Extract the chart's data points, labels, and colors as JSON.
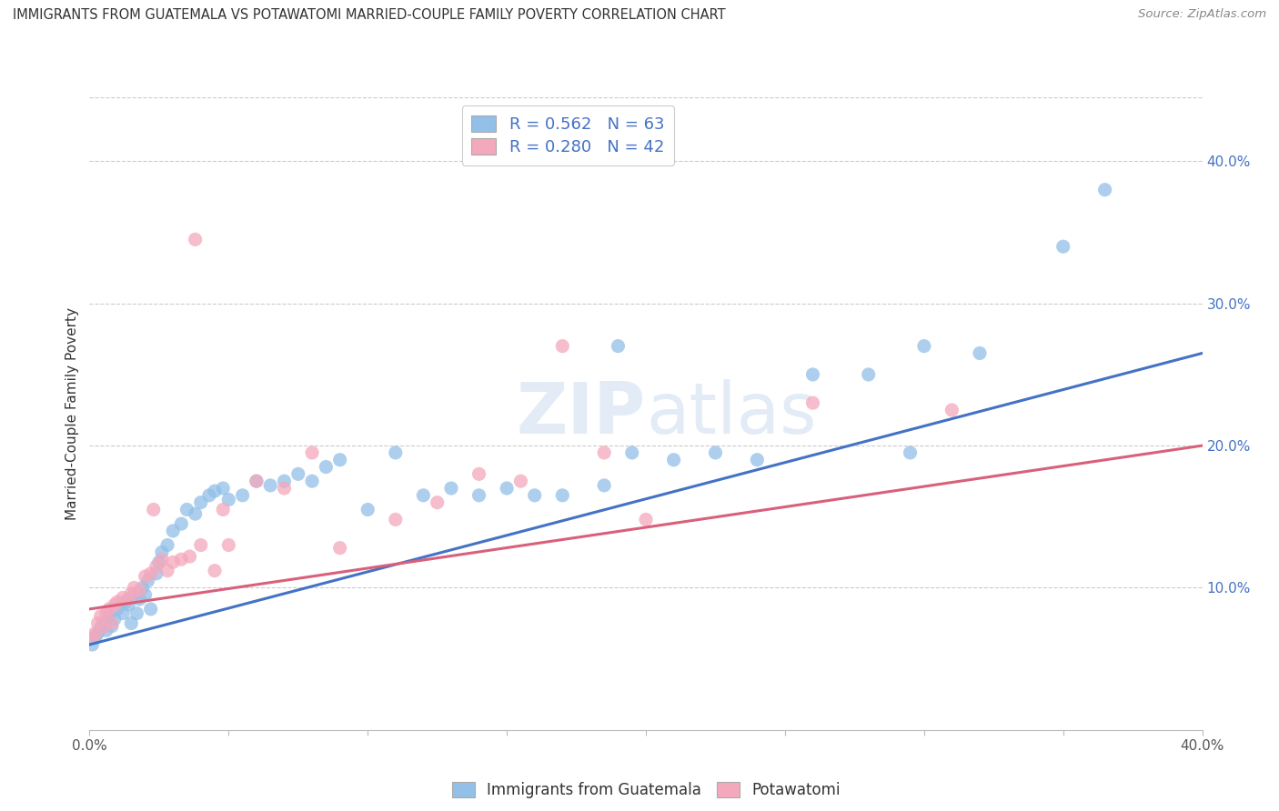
{
  "title": "IMMIGRANTS FROM GUATEMALA VS POTAWATOMI MARRIED-COUPLE FAMILY POVERTY CORRELATION CHART",
  "source": "Source: ZipAtlas.com",
  "ylabel": "Married-Couple Family Poverty",
  "series1_color": "#92C0E8",
  "series2_color": "#F4A8BC",
  "line1_color": "#4472C4",
  "line2_color": "#D9607A",
  "r1": 0.562,
  "n1": 63,
  "r2": 0.28,
  "n2": 42,
  "legend_label1": "Immigrants from Guatemala",
  "legend_label2": "Potawatomi",
  "blue_x": [
    0.001,
    0.002,
    0.003,
    0.004,
    0.005,
    0.006,
    0.007,
    0.008,
    0.009,
    0.01,
    0.012,
    0.013,
    0.014,
    0.015,
    0.016,
    0.017,
    0.018,
    0.019,
    0.02,
    0.021,
    0.022,
    0.024,
    0.025,
    0.026,
    0.028,
    0.03,
    0.033,
    0.035,
    0.038,
    0.04,
    0.043,
    0.045,
    0.048,
    0.05,
    0.055,
    0.06,
    0.065,
    0.07,
    0.075,
    0.08,
    0.085,
    0.09,
    0.1,
    0.11,
    0.12,
    0.13,
    0.14,
    0.15,
    0.16,
    0.17,
    0.185,
    0.195,
    0.21,
    0.225,
    0.24,
    0.26,
    0.28,
    0.3,
    0.32,
    0.35,
    0.365,
    0.295,
    0.19
  ],
  "blue_y": [
    0.06,
    0.065,
    0.068,
    0.072,
    0.075,
    0.07,
    0.08,
    0.073,
    0.078,
    0.085,
    0.082,
    0.09,
    0.088,
    0.075,
    0.095,
    0.082,
    0.092,
    0.1,
    0.095,
    0.105,
    0.085,
    0.11,
    0.118,
    0.125,
    0.13,
    0.14,
    0.145,
    0.155,
    0.152,
    0.16,
    0.165,
    0.168,
    0.17,
    0.162,
    0.165,
    0.175,
    0.172,
    0.175,
    0.18,
    0.175,
    0.185,
    0.19,
    0.155,
    0.195,
    0.165,
    0.17,
    0.165,
    0.17,
    0.165,
    0.165,
    0.172,
    0.195,
    0.19,
    0.195,
    0.19,
    0.25,
    0.25,
    0.27,
    0.265,
    0.34,
    0.38,
    0.195,
    0.27
  ],
  "pink_x": [
    0.001,
    0.002,
    0.003,
    0.004,
    0.005,
    0.006,
    0.007,
    0.008,
    0.009,
    0.01,
    0.012,
    0.014,
    0.015,
    0.016,
    0.018,
    0.02,
    0.022,
    0.024,
    0.026,
    0.028,
    0.03,
    0.033,
    0.036,
    0.04,
    0.045,
    0.05,
    0.06,
    0.07,
    0.09,
    0.11,
    0.125,
    0.14,
    0.155,
    0.17,
    0.185,
    0.2,
    0.26,
    0.31,
    0.048,
    0.023,
    0.08,
    0.038
  ],
  "pink_y": [
    0.065,
    0.068,
    0.075,
    0.08,
    0.072,
    0.082,
    0.085,
    0.075,
    0.088,
    0.09,
    0.093,
    0.092,
    0.096,
    0.1,
    0.098,
    0.108,
    0.11,
    0.115,
    0.12,
    0.112,
    0.118,
    0.12,
    0.122,
    0.13,
    0.112,
    0.13,
    0.175,
    0.17,
    0.128,
    0.148,
    0.16,
    0.18,
    0.175,
    0.27,
    0.195,
    0.148,
    0.23,
    0.225,
    0.155,
    0.155,
    0.195,
    0.345
  ],
  "line1_x0": 0.0,
  "line1_y0": 0.06,
  "line1_x1": 0.4,
  "line1_y1": 0.265,
  "line2_x0": 0.0,
  "line2_y0": 0.085,
  "line2_x1": 0.4,
  "line2_y1": 0.2,
  "xlim": [
    0.0,
    0.4
  ],
  "ylim": [
    0.0,
    0.445
  ],
  "y_ticks": [
    0.1,
    0.2,
    0.3,
    0.4
  ],
  "y_tick_labels": [
    "10.0%",
    "20.0%",
    "30.0%",
    "40.0%"
  ],
  "x_ticks": [
    0.0,
    0.05,
    0.1,
    0.15,
    0.2,
    0.25,
    0.3,
    0.35,
    0.4
  ],
  "x_tick_labels": [
    "0.0%",
    "",
    "",
    "",
    "",
    "",
    "",
    "",
    "40.0%"
  ],
  "grid_color": "#CCCCCC",
  "dot_size": 120,
  "watermark": "ZIPatlas"
}
